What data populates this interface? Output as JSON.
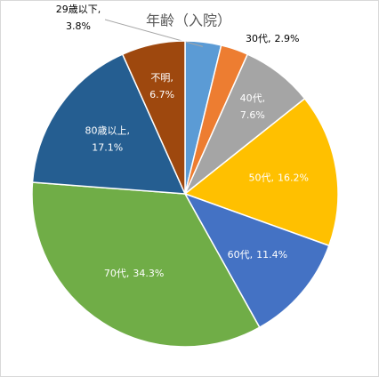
{
  "chart_data": {
    "type": "pie",
    "title": "年齢（入院）",
    "categories": [
      "29歳以下",
      "30代",
      "40代",
      "50代",
      "60代",
      "70代",
      "80歳以上",
      "不明"
    ],
    "values": [
      3.8,
      2.9,
      7.6,
      16.2,
      11.4,
      34.3,
      17.1,
      6.7
    ],
    "value_labels": [
      "3.8%",
      "2.9%",
      "7.6%",
      "16.2%",
      "11.4%",
      "34.3%",
      "17.1%",
      "6.7%"
    ],
    "label_separator": ",",
    "colors": [
      "#5b9bd5",
      "#ed7d31",
      "#a5a5a5",
      "#ffc000",
      "#4472c4",
      "#70ad47",
      "#255e91",
      "#9e480e"
    ]
  }
}
